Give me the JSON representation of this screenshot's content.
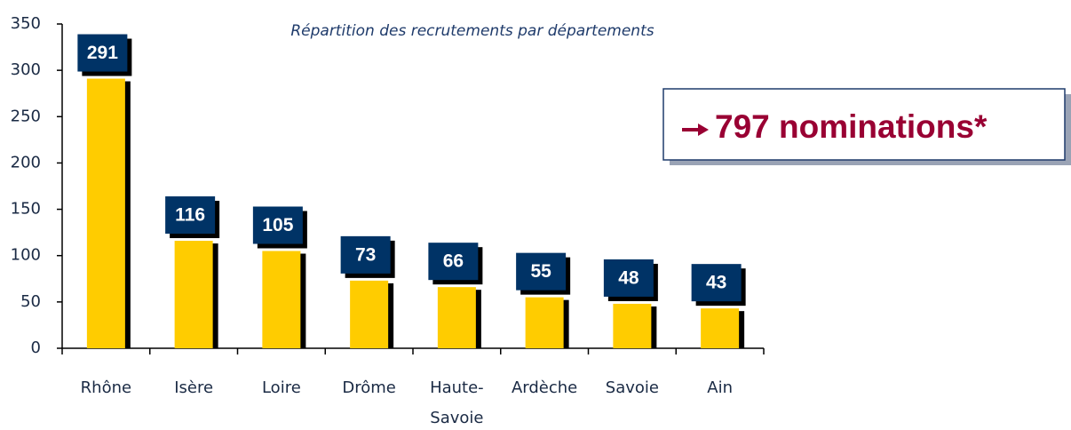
{
  "chart_data": {
    "type": "bar",
    "title": "Répartition des recrutements  par départements",
    "annotation": "797 nominations*",
    "categories": [
      "Rhône",
      "Isère",
      "Loire",
      "Drôme",
      "Haute-Savoie",
      "Ardèche",
      "Savoie",
      "Ain"
    ],
    "values": [
      291,
      116,
      105,
      73,
      66,
      55,
      48,
      43
    ],
    "color": "#ffcc00",
    "label_color": "#003366",
    "ylim": [
      0,
      350
    ],
    "yticks": [
      0,
      50,
      100,
      150,
      200,
      250,
      300,
      350
    ],
    "grid": false
  }
}
